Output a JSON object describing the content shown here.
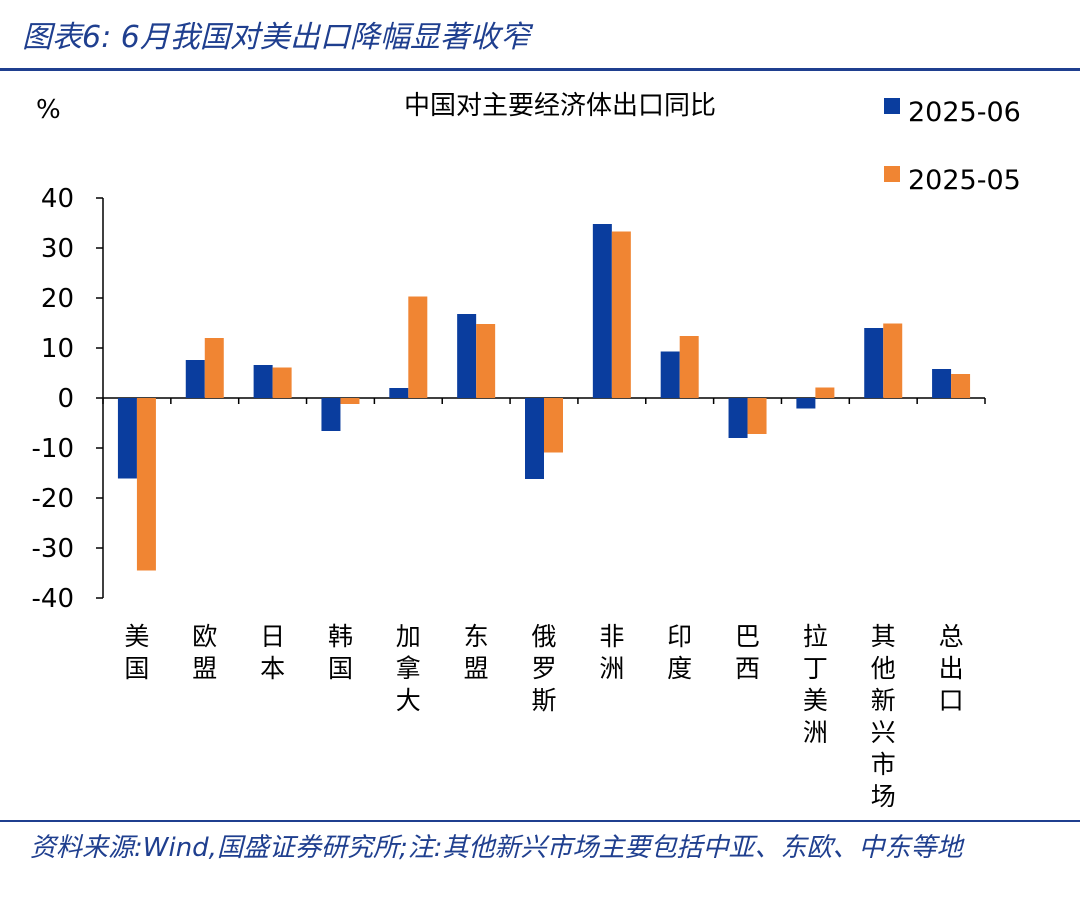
{
  "figure": {
    "title": "图表6:  6月我国对美出口降幅显著收窄",
    "source_note": "资料来源:Wind,国盛证券研究所;注:其他新兴市场主要包括中亚、东欧、中东等地"
  },
  "chart_data": {
    "type": "bar",
    "title": "中国对主要经济体出口同比",
    "ylabel": "%",
    "xlabel": "",
    "ylim": [
      -40,
      40
    ],
    "yticks": [
      40,
      30,
      20,
      10,
      0,
      -10,
      -20,
      -30,
      -40
    ],
    "legend_position": "top-right",
    "categories": [
      "美国",
      "欧盟",
      "日本",
      "韩国",
      "加拿大",
      "东盟",
      "俄罗斯",
      "非洲",
      "印度",
      "巴西",
      "拉丁美洲",
      "其他新兴市场",
      "总出口"
    ],
    "series": [
      {
        "name": "2025-06",
        "color": "#0a3d9e",
        "values": [
          -16.1,
          7.6,
          6.6,
          -6.6,
          2.0,
          16.8,
          -16.2,
          34.8,
          9.3,
          -8.0,
          -2.1,
          14.0,
          5.8
        ]
      },
      {
        "name": "2025-05",
        "color": "#f08533",
        "values": [
          -34.5,
          12.0,
          6.1,
          -1.2,
          20.3,
          14.8,
          -10.9,
          33.3,
          12.4,
          -7.2,
          2.1,
          14.9,
          4.8
        ]
      }
    ]
  }
}
